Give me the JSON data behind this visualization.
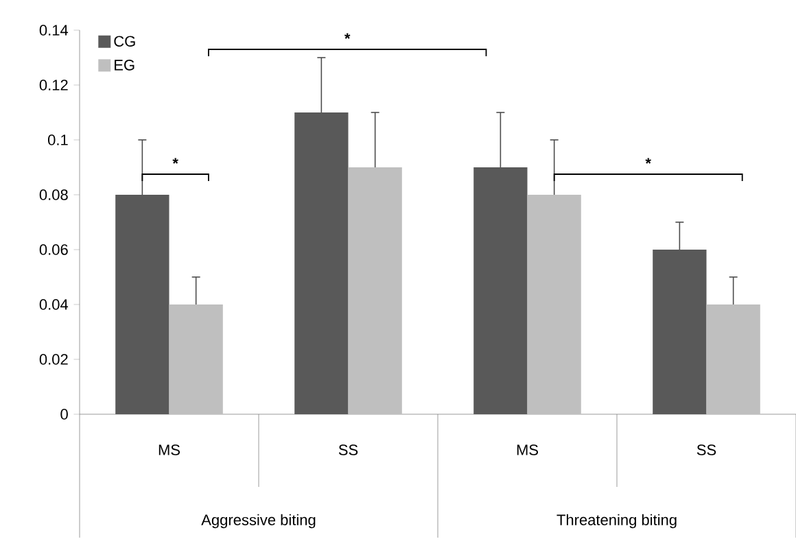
{
  "chart_data": {
    "type": "bar",
    "categories": [
      "MS",
      "SS",
      "MS",
      "SS"
    ],
    "series": [
      {
        "name": "CG",
        "color": "#595959",
        "values": [
          0.08,
          0.11,
          0.09,
          0.06
        ],
        "errors": [
          [
            0.08,
            0.1
          ],
          [
            0.11,
            0.13
          ],
          [
            0.09,
            0.11
          ],
          [
            0.06,
            0.07
          ]
        ]
      },
      {
        "name": "EG",
        "color": "#bfbfbf",
        "values": [
          0.04,
          0.09,
          0.08,
          0.04
        ],
        "errors": [
          [
            0.04,
            0.05
          ],
          [
            0.09,
            0.11
          ],
          [
            0.08,
            0.1
          ],
          [
            0.04,
            0.05
          ]
        ]
      }
    ],
    "ylim": [
      0,
      0.14
    ],
    "yticks": [
      0,
      0.02,
      0.04,
      0.06,
      0.08,
      0.1,
      0.12,
      0.14
    ],
    "legend": "top left",
    "grid": false,
    "annotations": [
      "*",
      "*",
      "*",
      "Aggressive biting",
      "Threatening biting"
    ]
  }
}
